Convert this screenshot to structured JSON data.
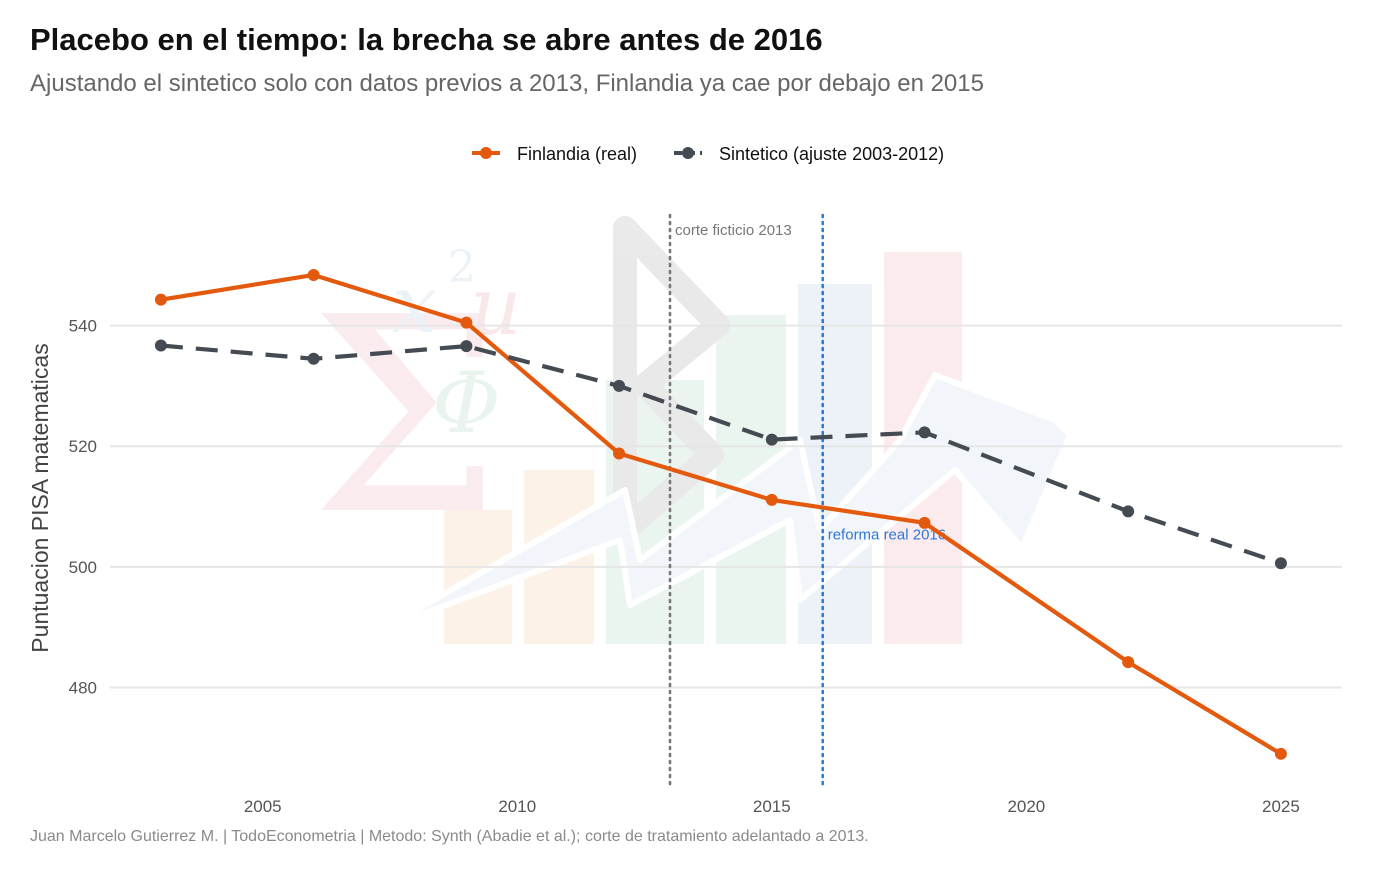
{
  "title": "Placebo en el tiempo: la brecha se abre antes de 2016",
  "subtitle": "Ajustando el sintetico solo con datos previos a 2013, Finlandia ya cae por debajo en 2015",
  "caption": "Juan Marcelo Gutierrez M. | TodoEconometria | Metodo: Synth (Abadie et al.); corte de tratamiento adelantado a 2013.",
  "chart_data": {
    "type": "line",
    "ylabel": "Puntuacion PISA matematicas",
    "xlabel": "",
    "xlim": [
      2002,
      2026.2
    ],
    "ylim": [
      463,
      560
    ],
    "xticks": [
      2005,
      2010,
      2015,
      2020,
      2025
    ],
    "yticks": [
      480,
      500,
      520,
      540
    ],
    "grid": "horizontal",
    "legend_position": "top",
    "series": [
      {
        "name": "Finlandia (real)",
        "color": "#E35A0E",
        "dashed": false,
        "x": [
          2003,
          2006,
          2009,
          2012,
          2015,
          2018,
          2022,
          2025
        ],
        "y": [
          544.3,
          548.4,
          540.5,
          518.8,
          511.1,
          507.3,
          484.2,
          469.0
        ]
      },
      {
        "name": "Sintetico (ajuste 2003-2012)",
        "color": "#454B53",
        "dashed": true,
        "x": [
          2003,
          2006,
          2009,
          2012,
          2015,
          2018,
          2022,
          2025
        ],
        "y": [
          536.7,
          534.5,
          536.6,
          530.0,
          521.1,
          522.3,
          509.2,
          500.6
        ]
      }
    ],
    "vlines": [
      {
        "x": 2013,
        "label": "corte ficticio 2013",
        "color": "#777777",
        "label_y": 555
      },
      {
        "x": 2016,
        "label": "reforma real 2016",
        "color": "#2F78D6",
        "label_y": 504.5
      }
    ]
  }
}
